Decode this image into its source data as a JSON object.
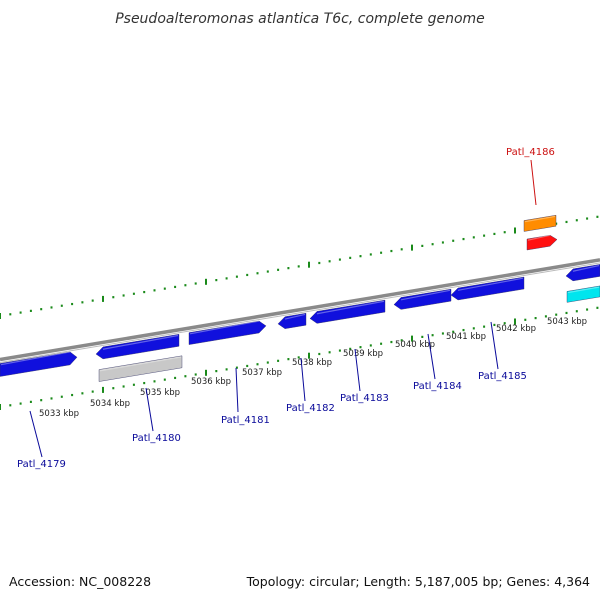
{
  "title": "Pseudoalteromonas atlantica T6c, complete genome",
  "footer": {
    "accession": "Accession: NC_008228",
    "summary": "Topology: circular; Length: 5,187,005 bp; Genes: 4,364"
  },
  "colors": {
    "forward_gene": "#1010dd",
    "reverse_gene": "#1010dd",
    "pseudo_gene": "#c8c8c8",
    "trna": "#ff8c00",
    "rrna": "#ff1010",
    "misc": "#00e5ee",
    "backbone": "#8a8a8a",
    "tick": "#1a8a1a",
    "label_blue": "#0a0a9a",
    "label_red": "#cc1111"
  },
  "scale": {
    "kbp_labels": [
      "5033 kbp",
      "5034 kbp",
      "5035 kbp",
      "5036 kbp",
      "5037 kbp",
      "5038 kbp",
      "5039 kbp",
      "5040 kbp",
      "5041 kbp",
      "5042 kbp",
      "5043 kbp"
    ]
  },
  "genes": [
    {
      "label": "Patl_4179",
      "color_key": "forward_gene"
    },
    {
      "label": "Patl_4180",
      "color_key": "forward_gene"
    },
    {
      "label": "Patl_4181",
      "color_key": "forward_gene"
    },
    {
      "label": "Patl_4182",
      "color_key": "forward_gene"
    },
    {
      "label": "Patl_4183",
      "color_key": "forward_gene"
    },
    {
      "label": "Patl_4184",
      "color_key": "forward_gene"
    },
    {
      "label": "Patl_4185",
      "color_key": "forward_gene"
    },
    {
      "label": "Patl_4186",
      "color_key": "rrna"
    }
  ]
}
